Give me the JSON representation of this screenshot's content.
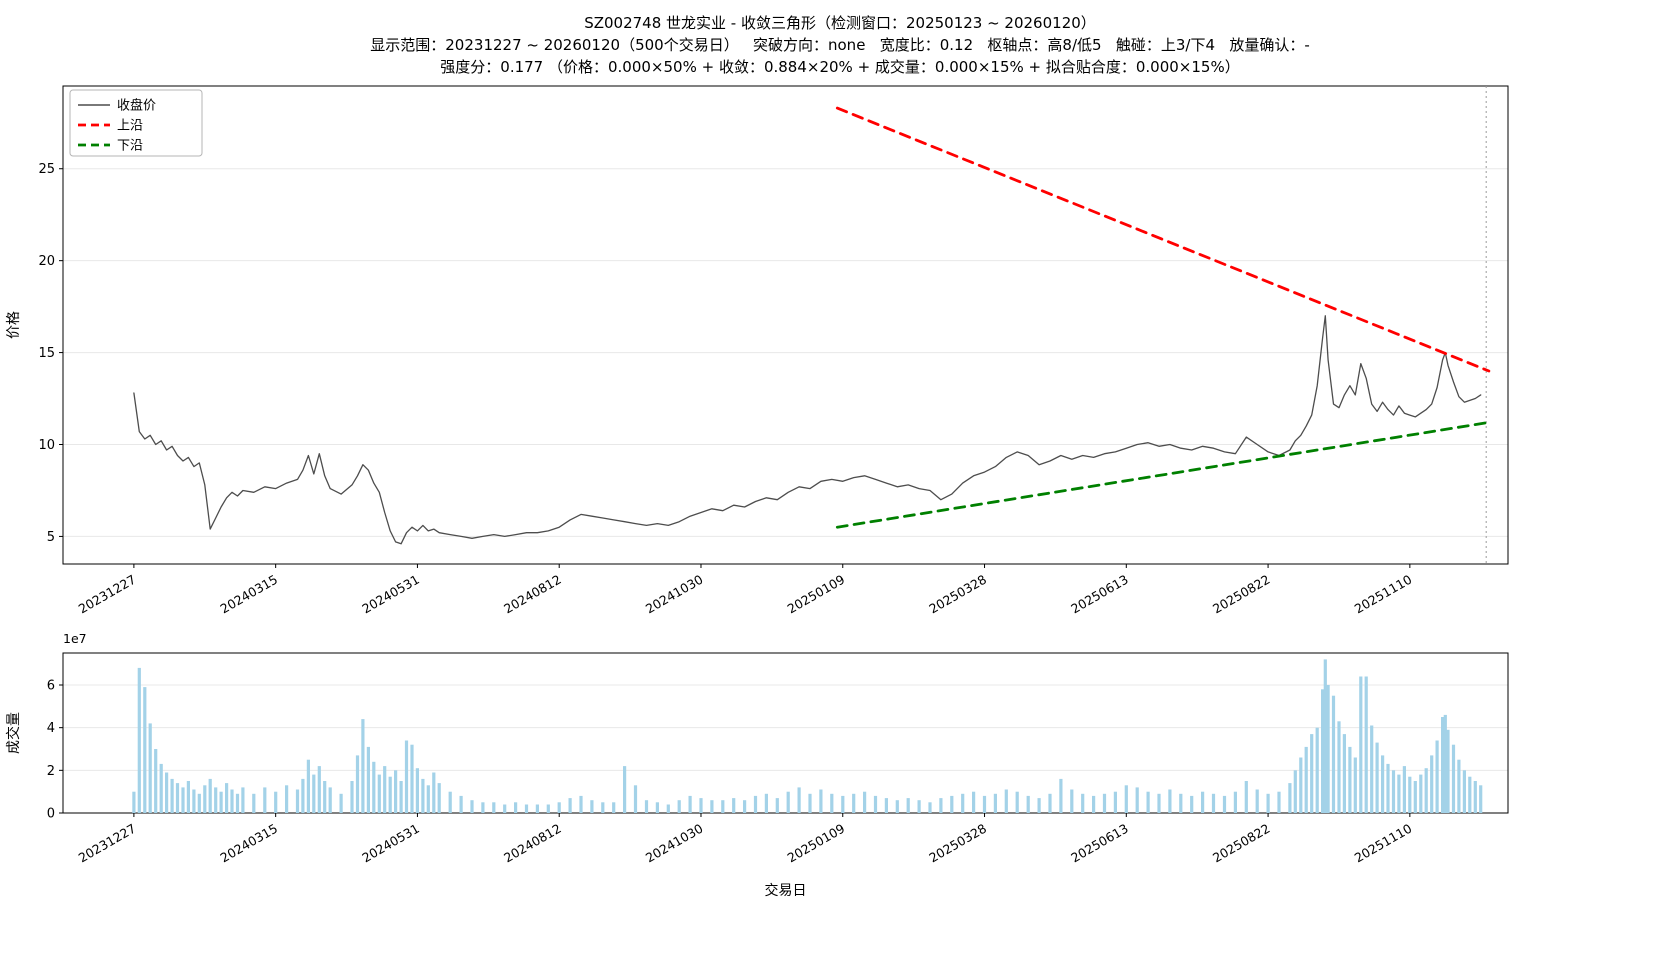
{
  "figure": {
    "title_line1": "SZ002748 世龙实业 - 收敛三角形（检测窗口：20250123 ~ 20260120）",
    "title_line2": "显示范围：20231227 ~ 20260120（500个交易日）   突破方向：none   宽度比：0.12   枢轴点：高8/低5   触碰：上3/下4   放量确认：-",
    "title_line3": "强度分：0.177 （价格：0.000×50% + 收敛：0.884×20% + 成交量：0.000×15% + 拟合贴合度：0.000×15%）"
  },
  "chart_data": [
    {
      "type": "line",
      "panel": "price",
      "ylabel": "价格",
      "ylim": [
        3.5,
        29.5
      ],
      "yticks": [
        5,
        10,
        15,
        20,
        25
      ],
      "xlim": [
        -26,
        504
      ],
      "xticks": [
        0,
        52,
        104,
        156,
        208,
        260,
        312,
        364,
        416,
        468
      ],
      "xtick_labels": [
        "20231227",
        "20240315",
        "20240531",
        "20240812",
        "20241030",
        "20250109",
        "20250328",
        "20250613",
        "20250822",
        "20251110"
      ],
      "grid": true,
      "vline_x": 496,
      "legend": [
        {
          "label": "收盘价",
          "color": "#4d4d4d",
          "dash": false
        },
        {
          "label": "上沿",
          "color": "#ff0000",
          "dash": true
        },
        {
          "label": "下沿",
          "color": "#008000",
          "dash": true
        }
      ],
      "series": [
        {
          "id": "close-price-line",
          "name": "收盘价",
          "color": "#4d4d4d",
          "width": 1.3,
          "dash": null,
          "x": [
            0,
            2,
            4,
            6,
            8,
            10,
            12,
            14,
            16,
            18,
            20,
            22,
            24,
            26,
            28,
            30,
            32,
            34,
            36,
            38,
            40,
            44,
            48,
            52,
            56,
            60,
            62,
            64,
            66,
            68,
            70,
            72,
            76,
            80,
            82,
            84,
            86,
            88,
            90,
            92,
            94,
            96,
            98,
            100,
            102,
            104,
            106,
            108,
            110,
            112,
            116,
            120,
            124,
            128,
            132,
            136,
            140,
            144,
            148,
            152,
            156,
            160,
            164,
            168,
            172,
            176,
            180,
            184,
            188,
            192,
            196,
            200,
            204,
            208,
            212,
            216,
            220,
            224,
            228,
            232,
            236,
            240,
            244,
            248,
            252,
            256,
            260,
            264,
            268,
            272,
            276,
            280,
            284,
            288,
            292,
            296,
            300,
            304,
            308,
            312,
            316,
            320,
            324,
            328,
            332,
            336,
            340,
            344,
            348,
            352,
            356,
            360,
            364,
            368,
            372,
            376,
            380,
            384,
            388,
            392,
            396,
            400,
            404,
            408,
            412,
            416,
            420,
            424,
            426,
            428,
            430,
            432,
            434,
            436,
            437,
            438,
            440,
            442,
            444,
            446,
            448,
            450,
            452,
            454,
            456,
            458,
            460,
            462,
            464,
            466,
            468,
            470,
            472,
            474,
            476,
            478,
            480,
            481,
            482,
            484,
            486,
            488,
            490,
            492,
            494
          ],
          "y": [
            12.8,
            10.7,
            10.3,
            10.5,
            10.0,
            10.2,
            9.7,
            9.9,
            9.4,
            9.1,
            9.3,
            8.8,
            9.0,
            7.8,
            5.4,
            6.0,
            6.6,
            7.1,
            7.4,
            7.2,
            7.5,
            7.4,
            7.7,
            7.6,
            7.9,
            8.1,
            8.6,
            9.4,
            8.4,
            9.5,
            8.3,
            7.6,
            7.3,
            7.8,
            8.3,
            8.9,
            8.6,
            7.9,
            7.4,
            6.3,
            5.3,
            4.7,
            4.6,
            5.2,
            5.5,
            5.3,
            5.6,
            5.3,
            5.4,
            5.2,
            5.1,
            5.0,
            4.9,
            5.0,
            5.1,
            5.0,
            5.1,
            5.2,
            5.2,
            5.3,
            5.5,
            5.9,
            6.2,
            6.1,
            6.0,
            5.9,
            5.8,
            5.7,
            5.6,
            5.7,
            5.6,
            5.8,
            6.1,
            6.3,
            6.5,
            6.4,
            6.7,
            6.6,
            6.9,
            7.1,
            7.0,
            7.4,
            7.7,
            7.6,
            8.0,
            8.1,
            8.0,
            8.2,
            8.3,
            8.1,
            7.9,
            7.7,
            7.8,
            7.6,
            7.5,
            7.0,
            7.3,
            7.9,
            8.3,
            8.5,
            8.8,
            9.3,
            9.6,
            9.4,
            8.9,
            9.1,
            9.4,
            9.2,
            9.4,
            9.3,
            9.5,
            9.6,
            9.8,
            10.0,
            10.1,
            9.9,
            10.0,
            9.8,
            9.7,
            9.9,
            9.8,
            9.6,
            9.5,
            10.4,
            10.0,
            9.6,
            9.4,
            9.7,
            10.2,
            10.5,
            11.0,
            11.6,
            13.2,
            15.8,
            17.0,
            14.6,
            12.2,
            12.0,
            12.7,
            13.2,
            12.7,
            14.4,
            13.6,
            12.2,
            11.8,
            12.3,
            11.9,
            11.6,
            12.1,
            11.7,
            11.6,
            11.5,
            11.7,
            11.9,
            12.2,
            13.1,
            14.6,
            15.0,
            14.3,
            13.4,
            12.6,
            12.3,
            12.4,
            12.5,
            12.7
          ]
        },
        {
          "id": "upper-edge-line",
          "name": "上沿",
          "color": "#ff0000",
          "width": 2.8,
          "dash": [
            10,
            7
          ],
          "x": [
            258,
            497
          ],
          "y": [
            28.3,
            14.0
          ]
        },
        {
          "id": "lower-edge-line",
          "name": "下沿",
          "color": "#008000",
          "width": 2.8,
          "dash": [
            10,
            7
          ],
          "x": [
            258,
            497
          ],
          "y": [
            5.5,
            11.2
          ]
        }
      ]
    },
    {
      "type": "bar",
      "panel": "volume",
      "ylabel": "成交量",
      "xlabel": "交易日",
      "unit_label": "1e7",
      "color": "#a3d2e8",
      "ylim": [
        0,
        7.5
      ],
      "yticks": [
        0,
        2,
        4,
        6
      ],
      "xlim": [
        -26,
        504
      ],
      "xticks": [
        0,
        52,
        104,
        156,
        208,
        260,
        312,
        364,
        416,
        468
      ],
      "xtick_labels": [
        "20231227",
        "20240315",
        "20240531",
        "20240812",
        "20241030",
        "20250109",
        "20250328",
        "20250613",
        "20250822",
        "20251110"
      ],
      "grid": true,
      "x": [
        0,
        2,
        4,
        6,
        8,
        10,
        12,
        14,
        16,
        18,
        20,
        22,
        24,
        26,
        28,
        30,
        32,
        34,
        36,
        38,
        40,
        44,
        48,
        52,
        56,
        60,
        62,
        64,
        66,
        68,
        70,
        72,
        76,
        80,
        82,
        84,
        86,
        88,
        90,
        92,
        94,
        96,
        98,
        100,
        102,
        104,
        106,
        108,
        110,
        112,
        116,
        120,
        124,
        128,
        132,
        136,
        140,
        144,
        148,
        152,
        156,
        160,
        164,
        168,
        172,
        176,
        180,
        184,
        188,
        192,
        196,
        200,
        204,
        208,
        212,
        216,
        220,
        224,
        228,
        232,
        236,
        240,
        244,
        248,
        252,
        256,
        260,
        264,
        268,
        272,
        276,
        280,
        284,
        288,
        292,
        296,
        300,
        304,
        308,
        312,
        316,
        320,
        324,
        328,
        332,
        336,
        340,
        344,
        348,
        352,
        356,
        360,
        364,
        368,
        372,
        376,
        380,
        384,
        388,
        392,
        396,
        400,
        404,
        408,
        412,
        416,
        420,
        424,
        426,
        428,
        430,
        432,
        434,
        436,
        437,
        438,
        440,
        442,
        444,
        446,
        448,
        450,
        452,
        454,
        456,
        458,
        460,
        462,
        464,
        466,
        468,
        470,
        472,
        474,
        476,
        478,
        480,
        481,
        482,
        484,
        486,
        488,
        490,
        492,
        494
      ],
      "values": [
        1.0,
        6.8,
        5.9,
        4.2,
        3.0,
        2.3,
        1.9,
        1.6,
        1.4,
        1.2,
        1.5,
        1.1,
        0.9,
        1.3,
        1.6,
        1.2,
        1.0,
        1.4,
        1.1,
        0.9,
        1.2,
        0.9,
        1.2,
        1.0,
        1.3,
        1.1,
        1.6,
        2.5,
        1.8,
        2.2,
        1.5,
        1.2,
        0.9,
        1.5,
        2.7,
        4.4,
        3.1,
        2.4,
        1.8,
        2.2,
        1.7,
        2.0,
        1.5,
        3.4,
        3.2,
        2.1,
        1.6,
        1.3,
        1.9,
        1.4,
        1.0,
        0.8,
        0.6,
        0.5,
        0.5,
        0.4,
        0.5,
        0.4,
        0.4,
        0.4,
        0.5,
        0.7,
        0.8,
        0.6,
        0.5,
        0.5,
        2.2,
        1.3,
        0.6,
        0.5,
        0.4,
        0.6,
        0.8,
        0.7,
        0.6,
        0.6,
        0.7,
        0.6,
        0.8,
        0.9,
        0.7,
        1.0,
        1.2,
        0.9,
        1.1,
        0.9,
        0.8,
        0.9,
        1.0,
        0.8,
        0.7,
        0.6,
        0.7,
        0.6,
        0.5,
        0.7,
        0.8,
        0.9,
        1.0,
        0.8,
        0.9,
        1.1,
        1.0,
        0.8,
        0.7,
        0.9,
        1.6,
        1.1,
        0.9,
        0.8,
        0.9,
        1.0,
        1.3,
        1.2,
        1.0,
        0.9,
        1.1,
        0.9,
        0.8,
        1.0,
        0.9,
        0.8,
        1.0,
        1.5,
        1.1,
        0.9,
        1.0,
        1.4,
        2.0,
        2.6,
        3.1,
        3.7,
        4.0,
        5.8,
        7.2,
        6.0,
        5.5,
        4.3,
        3.7,
        3.1,
        2.6,
        6.4,
        6.4,
        4.1,
        3.3,
        2.7,
        2.3,
        2.0,
        1.8,
        2.2,
        1.7,
        1.5,
        1.8,
        2.1,
        2.7,
        3.4,
        4.5,
        4.6,
        3.9,
        3.2,
        2.5,
        2.0,
        1.7,
        1.5,
        1.3
      ]
    }
  ]
}
